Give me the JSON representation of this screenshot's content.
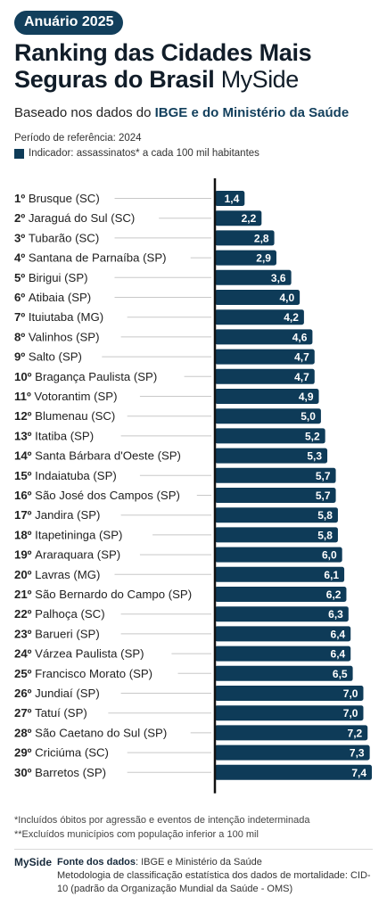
{
  "header": {
    "badge": "Anuário 2025",
    "title_line1": "Ranking das Cidades Mais",
    "title_line2": "Seguras do Brasil",
    "brand": "MySide",
    "subtitle_prefix": "Baseado nos dados do ",
    "subtitle_highlight": "IBGE e do Ministério da Saúde",
    "period": "Período de referência: 2024",
    "legend": "Indicador: assassinatos* a cada 100 mil habitantes"
  },
  "chart_data": {
    "type": "bar",
    "orientation": "horizontal",
    "categories": [
      {
        "rank": "1º",
        "city": "Brusque (SC)"
      },
      {
        "rank": "2º",
        "city": "Jaraguá do Sul (SC)"
      },
      {
        "rank": "3º",
        "city": "Tubarão (SC)"
      },
      {
        "rank": "4º",
        "city": "Santana de Parnaíba (SP)"
      },
      {
        "rank": "5º",
        "city": "Birigui (SP)"
      },
      {
        "rank": "6º",
        "city": "Atibaia (SP)"
      },
      {
        "rank": "7º",
        "city": "Ituiutaba (MG)"
      },
      {
        "rank": "8º",
        "city": "Valinhos (SP)"
      },
      {
        "rank": "9º",
        "city": "Salto (SP)"
      },
      {
        "rank": "10º",
        "city": "Bragança Paulista (SP)"
      },
      {
        "rank": "11º",
        "city": "Votorantim (SP)"
      },
      {
        "rank": "12º",
        "city": "Blumenau (SC)"
      },
      {
        "rank": "13º",
        "city": "Itatiba (SP)"
      },
      {
        "rank": "14º",
        "city": "Santa Bárbara d'Oeste (SP)"
      },
      {
        "rank": "15º",
        "city": "Indaiatuba (SP)"
      },
      {
        "rank": "16º",
        "city": "São José dos Campos (SP)"
      },
      {
        "rank": "17º",
        "city": "Jandira (SP)"
      },
      {
        "rank": "18º",
        "city": "Itapetininga (SP)"
      },
      {
        "rank": "19º",
        "city": "Araraquara (SP)"
      },
      {
        "rank": "20º",
        "city": "Lavras (MG)"
      },
      {
        "rank": "21º",
        "city": "São Bernardo do Campo (SP)"
      },
      {
        "rank": "22º",
        "city": "Palhoça (SC)"
      },
      {
        "rank": "23º",
        "city": "Barueri (SP)"
      },
      {
        "rank": "24º",
        "city": "Várzea Paulista (SP)"
      },
      {
        "rank": "25º",
        "city": "Francisco Morato (SP)"
      },
      {
        "rank": "26º",
        "city": "Jundiaí (SP)"
      },
      {
        "rank": "27º",
        "city": "Tatuí (SP)"
      },
      {
        "rank": "28º",
        "city": "São Caetano do Sul (SP)"
      },
      {
        "rank": "29º",
        "city": "Criciúma (SC)"
      },
      {
        "rank": "30º",
        "city": "Barretos (SP)"
      }
    ],
    "values": [
      1.4,
      2.2,
      2.8,
      2.9,
      3.6,
      4.0,
      4.2,
      4.6,
      4.7,
      4.7,
      4.9,
      5.0,
      5.2,
      5.3,
      5.7,
      5.7,
      5.8,
      5.8,
      6.0,
      6.1,
      6.2,
      6.3,
      6.4,
      6.4,
      6.5,
      7.0,
      7.0,
      7.2,
      7.3,
      7.4
    ],
    "value_labels": [
      "1,4",
      "2,2",
      "2,8",
      "2,9",
      "3,6",
      "4,0",
      "4,2",
      "4,6",
      "4,7",
      "4,7",
      "4,9",
      "5,0",
      "5,2",
      "5,3",
      "5,7",
      "5,7",
      "5,8",
      "5,8",
      "6,0",
      "6,1",
      "6,2",
      "6,3",
      "6,4",
      "6,4",
      "6,5",
      "7,0",
      "7,0",
      "7,2",
      "7,3",
      "7,4"
    ],
    "xlim": [
      0,
      7.4
    ],
    "grid": false,
    "colors": {
      "bar": "#0e3b58",
      "value_text": "#ffffff",
      "axis": "#111111",
      "leader": "#c8c8c8",
      "label": "#222222"
    }
  },
  "footnotes": [
    "*Incluídos óbitos por agressão e eventos de intenção indeterminada",
    "**Excluídos municípios com população inferior a 100 mil"
  ],
  "footer": {
    "brand": "MySide",
    "source_label": "Fonte dos dados",
    "source_value": ": IBGE e Ministério da Saúde",
    "methodology": "Metodologia de classificação estatística dos dados de mortalidade: CID-10 (padrão da Organização Mundial da Saúde - OMS)"
  }
}
